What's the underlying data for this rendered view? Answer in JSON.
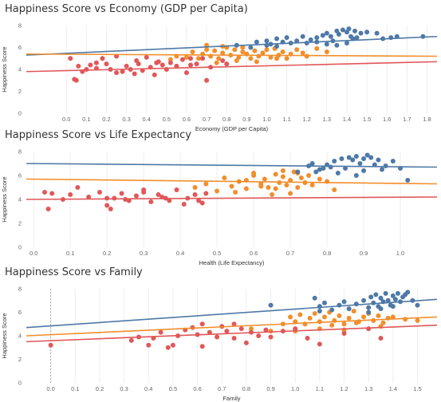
{
  "colors": {
    "high": "#4e79a7",
    "mid": "#f28e2b",
    "low": "#e15759"
  },
  "chart_data": [
    {
      "type": "scatter",
      "title": "Happiness Score vs Economy (GDP per Capita)",
      "xlabel": "Economy (GDP per Capita)",
      "ylabel": "Happiness Score",
      "xlim": [
        -0.2,
        1.85
      ],
      "ylim": [
        0,
        8
      ],
      "xticks": [
        0.0,
        0.1,
        0.2,
        0.3,
        0.4,
        0.5,
        0.6,
        0.7,
        0.8,
        0.9,
        1.0,
        1.1,
        1.2,
        1.3,
        1.4,
        1.5,
        1.6,
        1.7,
        1.8
      ],
      "yticks": [
        0,
        2,
        4,
        6,
        8
      ],
      "grid": "vertical",
      "series": [
        {
          "group": "high",
          "trend": [
            [
              -0.2,
              5.3
            ],
            [
              1.85,
              7.0
            ]
          ],
          "x": [
            0.85,
            0.92,
            0.95,
            1.0,
            1.02,
            1.05,
            1.08,
            1.1,
            1.12,
            1.15,
            1.18,
            1.2,
            1.22,
            1.25,
            1.28,
            1.3,
            1.32,
            1.33,
            1.35,
            1.36,
            1.38,
            1.4,
            1.41,
            1.42,
            1.44,
            1.45,
            1.47,
            1.5,
            1.55,
            1.58,
            1.62,
            1.65,
            1.78,
            1.0,
            1.05,
            1.25,
            1.3,
            1.35,
            1.4,
            1.43
          ],
          "y": [
            6.2,
            6.0,
            6.5,
            6.6,
            6.3,
            6.8,
            6.5,
            6.9,
            6.4,
            6.6,
            7.0,
            6.4,
            6.7,
            6.9,
            7.1,
            7.3,
            7.0,
            6.6,
            7.5,
            7.2,
            7.6,
            7.4,
            7.7,
            7.0,
            7.5,
            6.9,
            7.3,
            7.4,
            7.3,
            6.8,
            6.9,
            7.0,
            7.0,
            6.2,
            6.1,
            6.5,
            6.3,
            6.2,
            6.4,
            6.8
          ]
        },
        {
          "group": "mid",
          "trend": [
            [
              -0.2,
              5.4
            ],
            [
              1.85,
              5.2
            ]
          ],
          "x": [
            0.52,
            0.55,
            0.6,
            0.63,
            0.66,
            0.68,
            0.7,
            0.72,
            0.74,
            0.76,
            0.78,
            0.8,
            0.82,
            0.84,
            0.86,
            0.88,
            0.9,
            0.92,
            0.94,
            0.96,
            0.98,
            1.0,
            1.02,
            1.04,
            1.06,
            1.08,
            1.1,
            1.12,
            1.15,
            1.18,
            1.2,
            1.25,
            1.3,
            0.75,
            0.85,
            0.95,
            1.05,
            0.7,
            0.78,
            0.88
          ],
          "y": [
            4.9,
            5.2,
            5.1,
            5.6,
            5.0,
            5.4,
            5.8,
            5.2,
            5.7,
            5.0,
            5.5,
            6.0,
            5.3,
            5.8,
            5.1,
            5.6,
            5.4,
            5.0,
            5.7,
            5.2,
            5.5,
            5.8,
            5.1,
            5.9,
            5.3,
            5.6,
            5.0,
            5.4,
            5.8,
            5.5,
            5.2,
            5.9,
            5.6,
            4.6,
            4.8,
            4.7,
            5.0,
            6.2,
            6.1,
            6.0
          ]
        },
        {
          "group": "low",
          "trend": [
            [
              -0.2,
              3.8
            ],
            [
              1.85,
              4.7
            ]
          ],
          "x": [
            0.02,
            0.04,
            0.06,
            0.08,
            0.1,
            0.12,
            0.15,
            0.18,
            0.2,
            0.22,
            0.25,
            0.28,
            0.3,
            0.32,
            0.34,
            0.36,
            0.38,
            0.4,
            0.42,
            0.44,
            0.46,
            0.48,
            0.5,
            0.52,
            0.55,
            0.58,
            0.6,
            0.62,
            0.65,
            0.68,
            0.7,
            0.72,
            0.78,
            0.8,
            0.05,
            0.35,
            0.45,
            0.62,
            0.25,
            0.15
          ],
          "y": [
            5.0,
            3.1,
            4.3,
            3.8,
            4.0,
            4.4,
            4.1,
            5.0,
            4.5,
            4.0,
            5.2,
            3.8,
            4.3,
            4.0,
            3.6,
            4.5,
            3.9,
            5.1,
            4.2,
            3.5,
            4.7,
            4.4,
            4.0,
            4.6,
            4.3,
            4.9,
            3.7,
            4.4,
            4.5,
            5.0,
            3.0,
            4.2,
            4.8,
            4.5,
            3.0,
            4.8,
            4.6,
            5.0,
            3.7,
            4.6
          ]
        }
      ]
    },
    {
      "type": "scatter",
      "title": "Happiness Score vs Life Expectancy",
      "xlabel": "Health (Life Expectancy)",
      "ylabel": "Happiness Score",
      "xlim": [
        -0.02,
        1.1
      ],
      "ylim": [
        0,
        8
      ],
      "xticks": [
        0.0,
        0.1,
        0.2,
        0.3,
        0.4,
        0.5,
        0.6,
        0.7,
        0.8,
        0.9,
        1.0
      ],
      "yticks": [
        0,
        2,
        4,
        6,
        8
      ],
      "grid": "vertical",
      "series": [
        {
          "group": "high",
          "trend": [
            [
              -0.02,
              7.0
            ],
            [
              1.1,
              6.7
            ]
          ],
          "x": [
            0.72,
            0.75,
            0.76,
            0.78,
            0.8,
            0.82,
            0.84,
            0.85,
            0.86,
            0.87,
            0.88,
            0.89,
            0.9,
            0.91,
            0.92,
            0.93,
            0.94,
            0.95,
            0.96,
            0.98,
            1.0,
            1.02,
            0.77,
            0.83,
            0.88,
            0.9,
            0.79,
            0.81
          ],
          "y": [
            6.3,
            6.8,
            7.0,
            6.5,
            6.9,
            7.2,
            7.4,
            6.6,
            7.5,
            7.3,
            7.6,
            7.0,
            7.4,
            7.7,
            7.5,
            6.9,
            7.3,
            6.5,
            6.8,
            7.2,
            6.6,
            5.6,
            6.3,
            6.2,
            6.0,
            6.4,
            6.6,
            6.7
          ]
        },
        {
          "group": "mid",
          "trend": [
            [
              -0.02,
              5.7
            ],
            [
              1.1,
              5.3
            ]
          ],
          "x": [
            0.44,
            0.47,
            0.5,
            0.52,
            0.54,
            0.56,
            0.58,
            0.6,
            0.62,
            0.63,
            0.64,
            0.66,
            0.67,
            0.68,
            0.69,
            0.7,
            0.71,
            0.72,
            0.73,
            0.74,
            0.75,
            0.76,
            0.78,
            0.8,
            0.82,
            0.55,
            0.65,
            0.7,
            0.6,
            0.68,
            0.72,
            0.66,
            0.58,
            0.62
          ],
          "y": [
            5.0,
            5.3,
            4.7,
            5.8,
            5.1,
            5.5,
            4.9,
            6.0,
            5.3,
            5.7,
            5.0,
            6.1,
            5.4,
            5.9,
            5.2,
            5.6,
            6.3,
            5.0,
            5.8,
            5.4,
            6.0,
            5.2,
            5.7,
            5.5,
            4.8,
            4.6,
            4.4,
            4.5,
            6.2,
            6.4,
            6.2,
            4.9,
            5.6,
            5.1
          ]
        },
        {
          "group": "low",
          "trend": [
            [
              -0.02,
              4.0
            ],
            [
              1.1,
              4.2
            ]
          ],
          "x": [
            0.03,
            0.04,
            0.05,
            0.08,
            0.1,
            0.12,
            0.15,
            0.18,
            0.2,
            0.21,
            0.22,
            0.24,
            0.26,
            0.28,
            0.3,
            0.32,
            0.34,
            0.35,
            0.37,
            0.39,
            0.41,
            0.42,
            0.44,
            0.45,
            0.46,
            0.47,
            0.3,
            0.25,
            0.2,
            0.36
          ],
          "y": [
            4.6,
            3.2,
            4.5,
            4.0,
            4.4,
            5.0,
            4.2,
            4.6,
            3.5,
            3.2,
            4.1,
            4.5,
            3.9,
            4.3,
            4.6,
            3.8,
            4.4,
            4.2,
            3.9,
            4.8,
            3.6,
            4.1,
            4.4,
            3.9,
            3.7,
            4.5,
            4.8,
            4.0,
            4.1,
            4.1
          ]
        }
      ]
    },
    {
      "type": "scatter",
      "title": "Happiness Score vs Family",
      "xlabel": "Family",
      "ylabel": "Happiness Score",
      "xlim": [
        -0.1,
        1.58
      ],
      "ylim": [
        0,
        8
      ],
      "xticks": [
        0.0,
        0.1,
        0.2,
        0.3,
        0.4,
        0.5,
        0.6,
        0.7,
        0.8,
        0.9,
        1.0,
        1.1,
        1.2,
        1.3,
        1.4,
        1.5
      ],
      "yticks": [
        0,
        2,
        4,
        6,
        8
      ],
      "grid": "vertical",
      "zero_line": 0.0,
      "series": [
        {
          "group": "high",
          "trend": [
            [
              -0.1,
              4.7
            ],
            [
              1.58,
              7.1
            ]
          ],
          "x": [
            0.9,
            1.08,
            1.1,
            1.12,
            1.15,
            1.18,
            1.2,
            1.22,
            1.25,
            1.28,
            1.3,
            1.31,
            1.32,
            1.33,
            1.34,
            1.35,
            1.36,
            1.37,
            1.38,
            1.39,
            1.4,
            1.41,
            1.42,
            1.43,
            1.44,
            1.45,
            1.46,
            1.48,
            1.5,
            1.1,
            1.3,
            1.35,
            1.4
          ],
          "y": [
            6.6,
            7.2,
            6.5,
            6.8,
            6.2,
            6.6,
            6.9,
            6.3,
            6.7,
            7.0,
            6.4,
            7.3,
            6.8,
            7.5,
            6.5,
            7.2,
            6.9,
            7.6,
            7.0,
            6.6,
            7.4,
            7.1,
            7.6,
            6.9,
            7.3,
            7.5,
            7.7,
            7.0,
            6.6,
            6.1,
            6.0,
            6.3,
            6.5
          ]
        },
        {
          "group": "mid",
          "trend": [
            [
              -0.1,
              4.0
            ],
            [
              1.58,
              5.6
            ]
          ],
          "x": [
            0.82,
            0.9,
            0.95,
            0.98,
            1.0,
            1.02,
            1.04,
            1.06,
            1.08,
            1.1,
            1.12,
            1.14,
            1.16,
            1.18,
            1.2,
            1.22,
            1.24,
            1.26,
            1.28,
            1.3,
            1.32,
            1.34,
            1.36,
            1.38,
            1.4,
            1.45,
            1.5,
            1.0,
            1.1,
            1.2,
            1.15,
            1.25,
            1.35
          ],
          "y": [
            4.6,
            4.4,
            5.0,
            5.6,
            5.2,
            5.8,
            5.0,
            5.5,
            5.9,
            5.2,
            5.6,
            6.0,
            5.3,
            5.7,
            5.0,
            5.5,
            6.1,
            5.2,
            5.6,
            5.9,
            5.3,
            5.7,
            5.1,
            5.5,
            5.6,
            5.4,
            5.3,
            4.4,
            4.6,
            4.5,
            4.9,
            5.1,
            4.8
          ]
        },
        {
          "group": "low",
          "trend": [
            [
              -0.1,
              3.5
            ],
            [
              1.58,
              4.9
            ]
          ],
          "x": [
            0.0,
            0.33,
            0.36,
            0.4,
            0.42,
            0.45,
            0.48,
            0.5,
            0.52,
            0.55,
            0.58,
            0.6,
            0.62,
            0.65,
            0.68,
            0.7,
            0.72,
            0.75,
            0.78,
            0.8,
            0.82,
            0.85,
            0.88,
            0.9,
            0.95,
            1.0,
            1.05,
            1.1,
            1.2,
            1.3,
            1.35,
            0.62,
            0.75
          ],
          "y": [
            3.2,
            3.6,
            3.9,
            3.2,
            3.8,
            4.3,
            3.0,
            3.2,
            4.0,
            4.5,
            4.7,
            4.1,
            5.0,
            4.3,
            3.9,
            4.8,
            4.4,
            3.8,
            4.6,
            3.4,
            4.3,
            4.0,
            4.5,
            3.9,
            4.4,
            4.6,
            3.8,
            3.3,
            4.2,
            4.6,
            3.8,
            3.1,
            5.0
          ]
        }
      ]
    }
  ]
}
